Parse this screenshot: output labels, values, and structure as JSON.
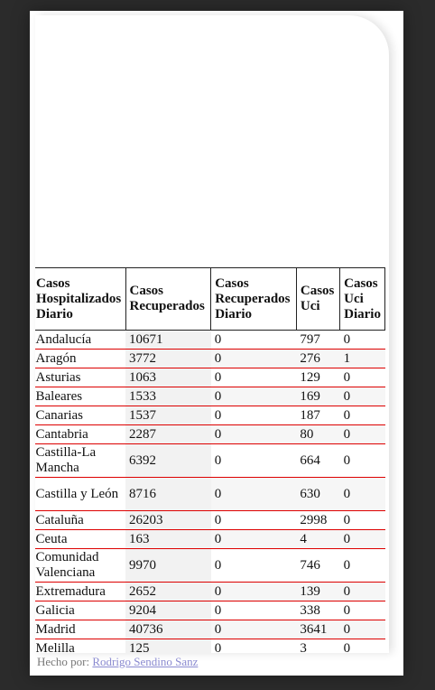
{
  "table": {
    "headers": [
      "Casos Hospitalizados Diario",
      "Casos Recuperados",
      "Casos Recuperados Diario",
      "Casos Uci",
      "Casos Uci Diario"
    ],
    "rows": [
      {
        "region": "Andalucía",
        "recuperados": "10671",
        "recuperados_diario": "0",
        "uci": "797",
        "uci_diario": "0"
      },
      {
        "region": "Aragón",
        "recuperados": "3772",
        "recuperados_diario": "0",
        "uci": "276",
        "uci_diario": "1"
      },
      {
        "region": "Asturias",
        "recuperados": "1063",
        "recuperados_diario": "0",
        "uci": "129",
        "uci_diario": "0"
      },
      {
        "region": "Baleares",
        "recuperados": "1533",
        "recuperados_diario": "0",
        "uci": "169",
        "uci_diario": "0"
      },
      {
        "region": "Canarias",
        "recuperados": "1537",
        "recuperados_diario": "0",
        "uci": "187",
        "uci_diario": "0"
      },
      {
        "region": "Cantabria",
        "recuperados": "2287",
        "recuperados_diario": "0",
        "uci": "80",
        "uci_diario": "0"
      },
      {
        "region": "Castilla-La Mancha",
        "recuperados": "6392",
        "recuperados_diario": "0",
        "uci": "664",
        "uci_diario": "0"
      },
      {
        "region": "Castilla y León",
        "recuperados": "8716",
        "recuperados_diario": "0",
        "uci": "630",
        "uci_diario": "0"
      },
      {
        "region": "Cataluña",
        "recuperados": "26203",
        "recuperados_diario": "0",
        "uci": "2998",
        "uci_diario": "0"
      },
      {
        "region": "Ceuta",
        "recuperados": "163",
        "recuperados_diario": "0",
        "uci": "4",
        "uci_diario": "0"
      },
      {
        "region": "Comunidad Valenciana",
        "recuperados": "9970",
        "recuperados_diario": "0",
        "uci": "746",
        "uci_diario": "0"
      },
      {
        "region": "Extremadura",
        "recuperados": "2652",
        "recuperados_diario": "0",
        "uci": "139",
        "uci_diario": "0"
      },
      {
        "region": "Galicia",
        "recuperados": "9204",
        "recuperados_diario": "0",
        "uci": "338",
        "uci_diario": "0"
      },
      {
        "region": "Madrid",
        "recuperados": "40736",
        "recuperados_diario": "0",
        "uci": "3641",
        "uci_diario": "0"
      },
      {
        "region": "Melilla",
        "recuperados": "125",
        "recuperados_diario": "0",
        "uci": "3",
        "uci_diario": "0"
      }
    ]
  },
  "footer": {
    "prefix": "Hecho por:",
    "author": "Rodrigo Sendino Sanz"
  },
  "colors": {
    "page_background": "#2b2b2b",
    "row_divider": "#dd0000",
    "link": "#8a8ad0"
  }
}
